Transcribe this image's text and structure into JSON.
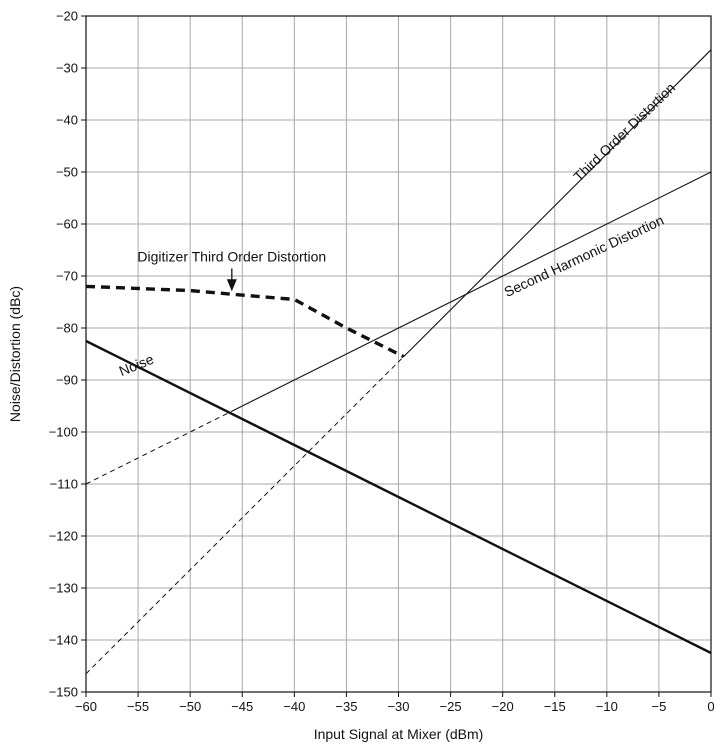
{
  "chart_data": {
    "type": "line",
    "title": "",
    "xlabel": "Input Signal at Mixer (dBm)",
    "ylabel": "Noise/Distortion (dBc)",
    "xlim": [
      -60,
      0
    ],
    "ylim": [
      -150,
      -20
    ],
    "xticks": [
      -60,
      -55,
      -50,
      -45,
      -40,
      -35,
      -30,
      -25,
      -20,
      -15,
      -10,
      -5,
      0
    ],
    "yticks": [
      -20,
      -30,
      -40,
      -50,
      -60,
      -70,
      -80,
      -90,
      -100,
      -110,
      -120,
      -130,
      -140,
      -150
    ],
    "xtick_labels": [
      "−60",
      "−55",
      "−50",
      "−45",
      "−40",
      "−35",
      "−30",
      "−25",
      "−20",
      "−15",
      "−10",
      "−5",
      "0"
    ],
    "ytick_labels": [
      "−20",
      "−30",
      "−40",
      "−50",
      "−60",
      "−70",
      "−80",
      "−90",
      "−100",
      "−110",
      "−120",
      "−130",
      "−140",
      "−150"
    ],
    "grid": true,
    "legend": "none",
    "series": [
      {
        "name": "Noise",
        "style": "thick",
        "x": [
          -60,
          0
        ],
        "y": [
          -82.5,
          -142.5
        ]
      },
      {
        "name": "Second Harmonic Distortion",
        "style": "thin",
        "x": [
          -46,
          0
        ],
        "y": [
          -96,
          -50
        ]
      },
      {
        "name": "",
        "style": "dashed-thin",
        "x": [
          -60,
          -46
        ],
        "y": [
          -110,
          -96
        ]
      },
      {
        "name": "Third Order Distortion",
        "style": "thin",
        "x": [
          -29.5,
          0
        ],
        "y": [
          -85.5,
          -26.5
        ]
      },
      {
        "name": "",
        "style": "dashed-thin",
        "x": [
          -60,
          -29.5
        ],
        "y": [
          -146.5,
          -85.5
        ]
      },
      {
        "name": "Digitizer Third Order Distortion",
        "style": "dashed-thick",
        "x": [
          -60,
          -50,
          -46,
          -40,
          -35,
          -29.5
        ],
        "y": [
          -72,
          -72.8,
          -73.5,
          -74.5,
          -80,
          -85.5
        ]
      }
    ],
    "annotations": [
      {
        "text": "Digitizer Third Order Distortion",
        "x": -46,
        "y": -67.2,
        "arrow_to": [
          -46,
          -73.5
        ]
      },
      {
        "text": "Noise",
        "x": -55,
        "y": -88,
        "rotate": -22
      },
      {
        "text": "Second Harmonic Distortion",
        "x": -12,
        "y": -67,
        "rotate": -25
      },
      {
        "text": "Third Order Distortion",
        "x": -8,
        "y": -43,
        "rotate": -44
      }
    ],
    "colors": {
      "line": "#111111",
      "grid": "#a9a9a9",
      "axis": "#111111"
    }
  }
}
